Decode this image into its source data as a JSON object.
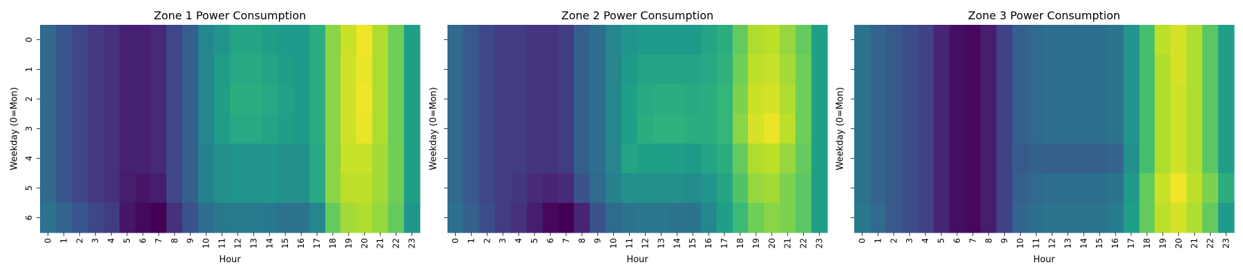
{
  "figure": {
    "colormap": [
      "#440154",
      "#482878",
      "#3e4989",
      "#31688e",
      "#26828e",
      "#1f9e89",
      "#35b779",
      "#6ece58",
      "#b5de2b",
      "#fde725"
    ]
  },
  "chart_data": [
    {
      "type": "heatmap",
      "title": "Zone 1 Power Consumption",
      "xlabel": "Hour",
      "ylabel": "Weekday (0=Mon)",
      "x": [
        "0",
        "1",
        "2",
        "3",
        "4",
        "5",
        "6",
        "7",
        "8",
        "9",
        "10",
        "11",
        "12",
        "13",
        "14",
        "15",
        "16",
        "17",
        "18",
        "19",
        "20",
        "21",
        "22",
        "23"
      ],
      "y": [
        "0",
        "1",
        "2",
        "3",
        "4",
        "5",
        "6"
      ],
      "colorscale_range": [
        0,
        1
      ],
      "values": [
        [
          0.34,
          0.27,
          0.22,
          0.17,
          0.14,
          0.09,
          0.09,
          0.11,
          0.22,
          0.3,
          0.46,
          0.52,
          0.58,
          0.58,
          0.56,
          0.54,
          0.54,
          0.62,
          0.82,
          0.92,
          0.98,
          0.88,
          0.78,
          0.56
        ],
        [
          0.34,
          0.27,
          0.22,
          0.17,
          0.14,
          0.09,
          0.09,
          0.11,
          0.22,
          0.3,
          0.46,
          0.55,
          0.6,
          0.6,
          0.58,
          0.56,
          0.54,
          0.62,
          0.82,
          0.93,
          0.97,
          0.88,
          0.78,
          0.56
        ],
        [
          0.34,
          0.27,
          0.22,
          0.17,
          0.14,
          0.09,
          0.09,
          0.11,
          0.22,
          0.3,
          0.46,
          0.56,
          0.62,
          0.62,
          0.6,
          0.57,
          0.54,
          0.62,
          0.82,
          0.93,
          0.98,
          0.88,
          0.78,
          0.56
        ],
        [
          0.34,
          0.27,
          0.22,
          0.17,
          0.14,
          0.09,
          0.09,
          0.11,
          0.22,
          0.3,
          0.46,
          0.55,
          0.6,
          0.6,
          0.58,
          0.56,
          0.54,
          0.62,
          0.82,
          0.93,
          0.97,
          0.88,
          0.78,
          0.56
        ],
        [
          0.34,
          0.27,
          0.22,
          0.17,
          0.14,
          0.09,
          0.09,
          0.11,
          0.22,
          0.3,
          0.44,
          0.5,
          0.52,
          0.52,
          0.52,
          0.5,
          0.5,
          0.6,
          0.82,
          0.92,
          0.92,
          0.86,
          0.78,
          0.56
        ],
        [
          0.34,
          0.27,
          0.22,
          0.17,
          0.14,
          0.08,
          0.06,
          0.08,
          0.22,
          0.3,
          0.44,
          0.5,
          0.52,
          0.52,
          0.52,
          0.5,
          0.5,
          0.6,
          0.82,
          0.9,
          0.9,
          0.86,
          0.78,
          0.56
        ],
        [
          0.38,
          0.32,
          0.27,
          0.22,
          0.18,
          0.06,
          0.02,
          0.0,
          0.14,
          0.26,
          0.36,
          0.4,
          0.42,
          0.42,
          0.4,
          0.38,
          0.38,
          0.46,
          0.76,
          0.86,
          0.88,
          0.84,
          0.76,
          0.52
        ]
      ]
    },
    {
      "type": "heatmap",
      "title": "Zone 2 Power Consumption",
      "xlabel": "Hour",
      "ylabel": "Weekday (0=Mon)",
      "x": [
        "0",
        "1",
        "2",
        "3",
        "4",
        "5",
        "6",
        "7",
        "8",
        "9",
        "10",
        "11",
        "12",
        "13",
        "14",
        "15",
        "16",
        "17",
        "18",
        "19",
        "20",
        "21",
        "22",
        "23"
      ],
      "y": [
        "0",
        "1",
        "2",
        "3",
        "4",
        "5",
        "6"
      ],
      "colorscale_range": [
        0,
        1
      ],
      "values": [
        [
          0.34,
          0.28,
          0.22,
          0.18,
          0.18,
          0.15,
          0.15,
          0.18,
          0.3,
          0.36,
          0.46,
          0.52,
          0.54,
          0.54,
          0.54,
          0.54,
          0.58,
          0.62,
          0.76,
          0.88,
          0.9,
          0.84,
          0.76,
          0.56
        ],
        [
          0.34,
          0.28,
          0.22,
          0.18,
          0.18,
          0.15,
          0.15,
          0.18,
          0.3,
          0.36,
          0.46,
          0.54,
          0.58,
          0.58,
          0.58,
          0.58,
          0.6,
          0.64,
          0.78,
          0.9,
          0.92,
          0.86,
          0.78,
          0.56
        ],
        [
          0.34,
          0.28,
          0.22,
          0.18,
          0.18,
          0.15,
          0.15,
          0.18,
          0.3,
          0.36,
          0.46,
          0.56,
          0.6,
          0.62,
          0.62,
          0.6,
          0.62,
          0.66,
          0.8,
          0.92,
          0.94,
          0.88,
          0.78,
          0.56
        ],
        [
          0.34,
          0.28,
          0.22,
          0.18,
          0.18,
          0.15,
          0.15,
          0.18,
          0.3,
          0.36,
          0.46,
          0.56,
          0.62,
          0.64,
          0.64,
          0.62,
          0.62,
          0.66,
          0.82,
          0.94,
          0.97,
          0.9,
          0.78,
          0.56
        ],
        [
          0.34,
          0.28,
          0.22,
          0.18,
          0.18,
          0.15,
          0.15,
          0.18,
          0.3,
          0.36,
          0.46,
          0.58,
          0.56,
          0.56,
          0.56,
          0.54,
          0.58,
          0.62,
          0.76,
          0.88,
          0.9,
          0.84,
          0.76,
          0.56
        ],
        [
          0.34,
          0.28,
          0.22,
          0.18,
          0.16,
          0.12,
          0.1,
          0.12,
          0.26,
          0.34,
          0.44,
          0.5,
          0.5,
          0.5,
          0.5,
          0.48,
          0.52,
          0.58,
          0.72,
          0.84,
          0.86,
          0.8,
          0.74,
          0.56
        ],
        [
          0.36,
          0.3,
          0.24,
          0.18,
          0.14,
          0.08,
          0.02,
          0.0,
          0.1,
          0.26,
          0.34,
          0.38,
          0.4,
          0.4,
          0.38,
          0.38,
          0.46,
          0.56,
          0.68,
          0.78,
          0.82,
          0.8,
          0.74,
          0.56
        ]
      ]
    },
    {
      "type": "heatmap",
      "title": "Zone 3 Power Consumption",
      "xlabel": "Hour",
      "ylabel": "Weekday (0=Mon)",
      "x": [
        "0",
        "1",
        "2",
        "3",
        "4",
        "5",
        "6",
        "7",
        "8",
        "9",
        "10",
        "11",
        "12",
        "13",
        "14",
        "15",
        "16",
        "17",
        "18",
        "19",
        "20",
        "21",
        "22",
        "23"
      ],
      "y": [
        "0",
        "1",
        "2",
        "3",
        "4",
        "5",
        "6"
      ],
      "colorscale_range": [
        0,
        1
      ],
      "values": [
        [
          0.38,
          0.32,
          0.28,
          0.24,
          0.2,
          0.1,
          0.04,
          0.02,
          0.08,
          0.2,
          0.3,
          0.34,
          0.36,
          0.36,
          0.36,
          0.36,
          0.38,
          0.52,
          0.7,
          0.9,
          0.94,
          0.88,
          0.74,
          0.56
        ],
        [
          0.38,
          0.32,
          0.28,
          0.24,
          0.2,
          0.1,
          0.04,
          0.02,
          0.08,
          0.2,
          0.3,
          0.34,
          0.36,
          0.36,
          0.36,
          0.36,
          0.38,
          0.52,
          0.7,
          0.88,
          0.94,
          0.88,
          0.74,
          0.56
        ],
        [
          0.38,
          0.32,
          0.28,
          0.24,
          0.2,
          0.1,
          0.04,
          0.02,
          0.08,
          0.2,
          0.3,
          0.34,
          0.36,
          0.36,
          0.36,
          0.36,
          0.38,
          0.52,
          0.7,
          0.88,
          0.93,
          0.88,
          0.74,
          0.56
        ],
        [
          0.38,
          0.32,
          0.28,
          0.24,
          0.2,
          0.1,
          0.04,
          0.02,
          0.08,
          0.2,
          0.3,
          0.34,
          0.36,
          0.36,
          0.36,
          0.36,
          0.38,
          0.52,
          0.7,
          0.88,
          0.93,
          0.88,
          0.74,
          0.56
        ],
        [
          0.38,
          0.32,
          0.28,
          0.24,
          0.2,
          0.1,
          0.04,
          0.02,
          0.08,
          0.2,
          0.28,
          0.3,
          0.3,
          0.3,
          0.3,
          0.3,
          0.32,
          0.5,
          0.7,
          0.88,
          0.93,
          0.88,
          0.74,
          0.56
        ],
        [
          0.38,
          0.32,
          0.28,
          0.24,
          0.2,
          0.1,
          0.04,
          0.02,
          0.08,
          0.2,
          0.3,
          0.34,
          0.36,
          0.36,
          0.36,
          0.36,
          0.38,
          0.54,
          0.76,
          0.92,
          0.98,
          0.9,
          0.8,
          0.62
        ],
        [
          0.4,
          0.34,
          0.28,
          0.24,
          0.2,
          0.1,
          0.04,
          0.02,
          0.08,
          0.2,
          0.32,
          0.36,
          0.38,
          0.38,
          0.38,
          0.38,
          0.42,
          0.56,
          0.76,
          0.9,
          0.94,
          0.88,
          0.76,
          0.54
        ]
      ]
    }
  ]
}
